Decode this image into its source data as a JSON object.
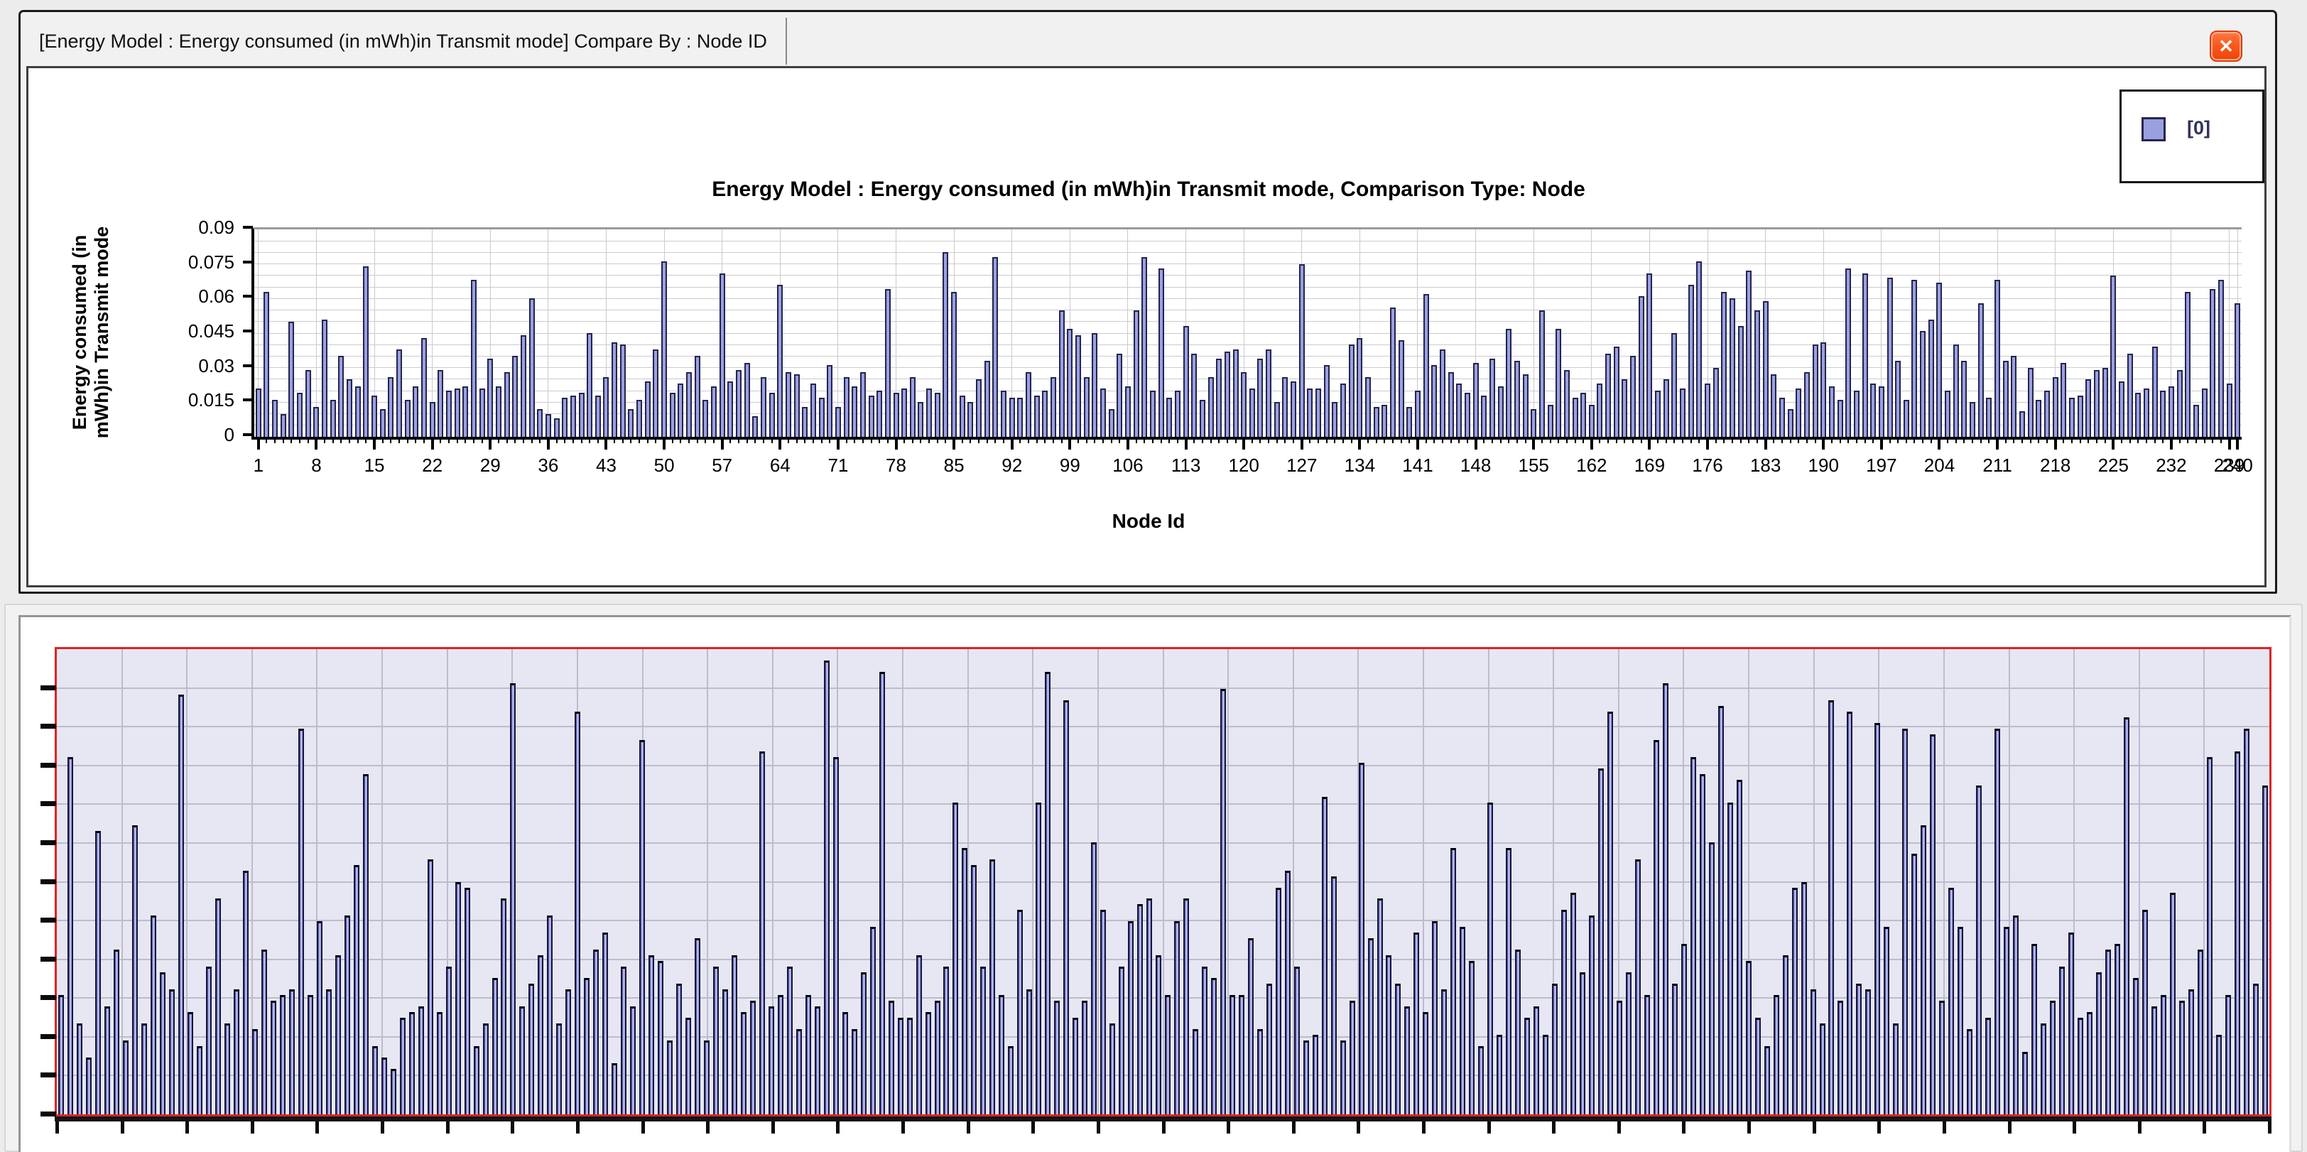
{
  "window": {
    "tab_title": "[Energy Model :  Energy consumed (in mWh)in Transmit mode] Compare By : Node ID",
    "close_glyph": "✕"
  },
  "chart_data": {
    "type": "bar",
    "title": "Energy Model :  Energy consumed (in mWh)in Transmit mode, Comparison Type: Node",
    "ylabel": "Energy consumed (in mWh)in Transmit mode",
    "ylabel_lines": [
      "Energy consumed (in",
      "mWh)in Transmit mode"
    ],
    "xlabel": "Node Id",
    "ylim": [
      0,
      0.09
    ],
    "ytick_step": 0.015,
    "yticks": [
      "0.09",
      "0.075",
      "0.06",
      "0.045",
      "0.03",
      "0.015",
      "0"
    ],
    "minor_grid_step": 0.005,
    "xticks": [
      1,
      8,
      15,
      22,
      29,
      36,
      43,
      50,
      57,
      64,
      71,
      78,
      85,
      92,
      99,
      106,
      113,
      120,
      127,
      134,
      141,
      148,
      155,
      162,
      169,
      176,
      183,
      190,
      197,
      204,
      211,
      218,
      225,
      232,
      239,
      240
    ],
    "grid": true,
    "legend_position": "top-right",
    "series": [
      {
        "name": "[0]",
        "color": "#9aa0df",
        "values": [
          0.021,
          0.063,
          0.016,
          0.01,
          0.05,
          0.019,
          0.029,
          0.013,
          0.051,
          0.016,
          0.035,
          0.025,
          0.022,
          0.074,
          0.018,
          0.012,
          0.026,
          0.038,
          0.016,
          0.022,
          0.043,
          0.015,
          0.029,
          0.02,
          0.021,
          0.022,
          0.068,
          0.021,
          0.034,
          0.022,
          0.028,
          0.035,
          0.044,
          0.06,
          0.012,
          0.01,
          0.008,
          0.017,
          0.018,
          0.019,
          0.045,
          0.018,
          0.026,
          0.041,
          0.04,
          0.012,
          0.016,
          0.024,
          0.038,
          0.076,
          0.019,
          0.023,
          0.028,
          0.035,
          0.016,
          0.022,
          0.071,
          0.024,
          0.029,
          0.032,
          0.009,
          0.026,
          0.019,
          0.066,
          0.028,
          0.027,
          0.013,
          0.023,
          0.017,
          0.031,
          0.013,
          0.026,
          0.022,
          0.028,
          0.018,
          0.02,
          0.064,
          0.019,
          0.021,
          0.026,
          0.015,
          0.021,
          0.019,
          0.08,
          0.063,
          0.018,
          0.015,
          0.025,
          0.033,
          0.078,
          0.02,
          0.017,
          0.017,
          0.028,
          0.018,
          0.02,
          0.026,
          0.055,
          0.047,
          0.044,
          0.026,
          0.045,
          0.021,
          0.012,
          0.036,
          0.022,
          0.055,
          0.078,
          0.02,
          0.073,
          0.017,
          0.02,
          0.048,
          0.036,
          0.016,
          0.026,
          0.034,
          0.037,
          0.038,
          0.028,
          0.021,
          0.034,
          0.038,
          0.015,
          0.026,
          0.024,
          0.075,
          0.021,
          0.021,
          0.031,
          0.015,
          0.023,
          0.04,
          0.043,
          0.026,
          0.013,
          0.014,
          0.056,
          0.042,
          0.013,
          0.02,
          0.062,
          0.031,
          0.038,
          0.028,
          0.023,
          0.019,
          0.032,
          0.018,
          0.034,
          0.022,
          0.047,
          0.033,
          0.027,
          0.012,
          0.055,
          0.014,
          0.047,
          0.029,
          0.017,
          0.019,
          0.014,
          0.023,
          0.036,
          0.039,
          0.025,
          0.035,
          0.061,
          0.071,
          0.02,
          0.025,
          0.045,
          0.021,
          0.066,
          0.076,
          0.023,
          0.03,
          0.063,
          0.06,
          0.048,
          0.072,
          0.055,
          0.059,
          0.027,
          0.017,
          0.012,
          0.021,
          0.028,
          0.04,
          0.041,
          0.022,
          0.016,
          0.073,
          0.02,
          0.071,
          0.023,
          0.022,
          0.069,
          0.033,
          0.016,
          0.068,
          0.046,
          0.051,
          0.067,
          0.02,
          0.04,
          0.033,
          0.015,
          0.058,
          0.017,
          0.068,
          0.033,
          0.035,
          0.011,
          0.03,
          0.016,
          0.02,
          0.026,
          0.032,
          0.017,
          0.018,
          0.025,
          0.029,
          0.03,
          0.07,
          0.024,
          0.036,
          0.019,
          0.021,
          0.039,
          0.02,
          0.022,
          0.029,
          0.063,
          0.014,
          0.021,
          0.064,
          0.068,
          0.023,
          0.058
        ]
      }
    ]
  },
  "zoom_panel": {
    "ymax": 0.082,
    "plot_bg": "#e7e7f3",
    "border_color": "#e02222",
    "h_grid_rows": 12,
    "v_grid_cols": 34
  },
  "colors": {
    "bar_fill": "#9aa0df",
    "bar_border": "#24244e",
    "close_button": "#fb5a1d",
    "grid_top": "#cbcbcb",
    "grid_zoom": "#bcbccd"
  }
}
